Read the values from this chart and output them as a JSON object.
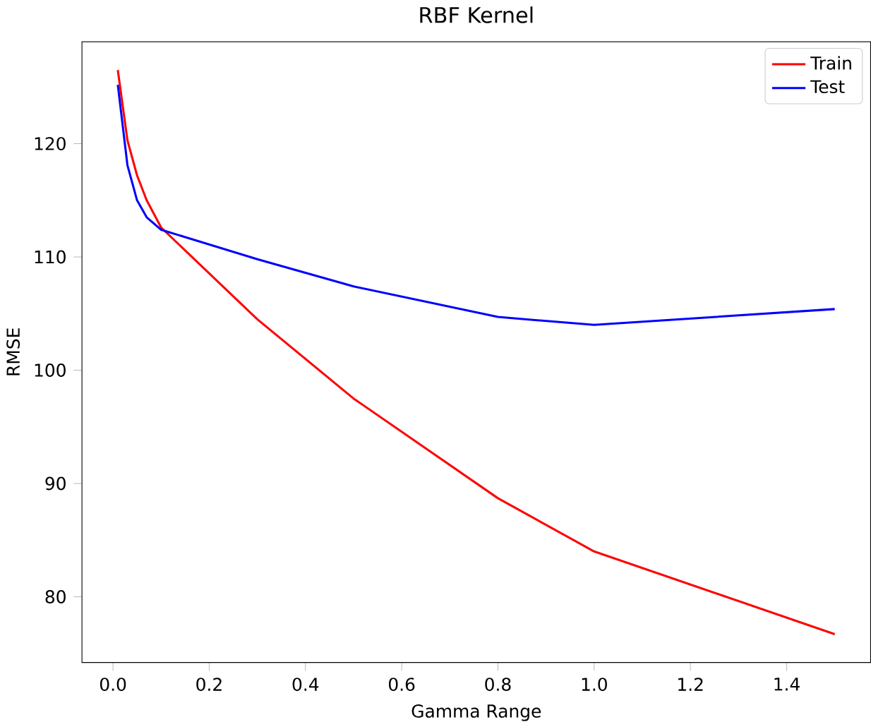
{
  "chart_data": {
    "type": "line",
    "title": "RBF Kernel",
    "xlabel": "Gamma Range",
    "ylabel": "RMSE",
    "x": [
      0.01,
      0.03,
      0.05,
      0.07,
      0.1,
      0.3,
      0.5,
      0.8,
      1.0,
      1.5
    ],
    "series": [
      {
        "name": "Train",
        "color": "#ff0000",
        "values": [
          126.5,
          120.3,
          117.2,
          115.0,
          112.6,
          104.5,
          97.5,
          88.7,
          84.0,
          76.7
        ]
      },
      {
        "name": "Test",
        "color": "#0000ff",
        "values": [
          125.2,
          118.1,
          115.0,
          113.5,
          112.4,
          109.8,
          107.4,
          104.7,
          104.0,
          105.4
        ]
      }
    ],
    "xlim": [
      -0.0645,
      1.5745
    ],
    "ylim": [
      74.2,
      129
    ],
    "xticks": [
      {
        "value": 0,
        "label": "0.0"
      },
      0.2,
      0.4,
      0.6,
      0.8,
      {
        "value": 1,
        "label": "1.0"
      },
      1.2,
      1.4
    ],
    "yticks": [
      80,
      90,
      100,
      110,
      120
    ],
    "legend": "top right",
    "grid": false
  }
}
